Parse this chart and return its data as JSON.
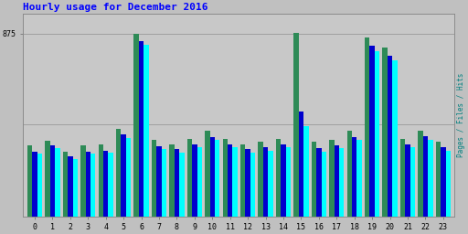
{
  "title": "Hourly usage for December 2016",
  "hours": [
    0,
    1,
    2,
    3,
    4,
    5,
    6,
    7,
    8,
    9,
    10,
    11,
    12,
    13,
    14,
    15,
    16,
    17,
    18,
    19,
    20,
    21,
    22,
    23
  ],
  "hits": [
    340,
    360,
    310,
    340,
    345,
    420,
    875,
    365,
    345,
    370,
    410,
    370,
    345,
    355,
    370,
    880,
    355,
    365,
    410,
    855,
    810,
    370,
    410,
    355
  ],
  "files": [
    310,
    340,
    285,
    310,
    315,
    390,
    840,
    335,
    320,
    345,
    380,
    345,
    320,
    330,
    345,
    500,
    325,
    340,
    380,
    815,
    770,
    345,
    385,
    330
  ],
  "pages": [
    300,
    325,
    275,
    300,
    305,
    375,
    820,
    320,
    305,
    330,
    365,
    330,
    305,
    315,
    330,
    430,
    310,
    325,
    365,
    790,
    745,
    330,
    365,
    315
  ],
  "color_hits": "#2E8B57",
  "color_files": "#0000CD",
  "color_pages": "#00FFFF",
  "bg_color": "#C0C0C0",
  "plot_bg": "#C8C8C8",
  "title_color": "#0000FF",
  "ylabel_color": "#008080",
  "ytick_label": "875",
  "ylim": [
    0,
    970
  ],
  "ylabel": "Pages / Files / Hits",
  "bar_width": 0.28
}
